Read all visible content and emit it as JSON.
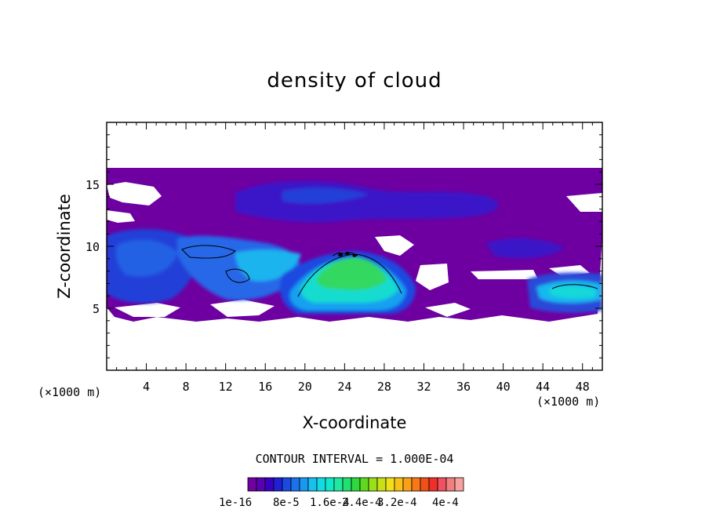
{
  "chart_data": {
    "type": "heatmap",
    "title": "density of cloud",
    "xlabel": "X-coordinate",
    "ylabel": "Z-coordinate",
    "x_unit": "(×1000 m)",
    "z_unit": "(×1000 m)",
    "xlim": [
      0,
      50
    ],
    "ylim": [
      0,
      20
    ],
    "x_ticks": [
      4,
      8,
      12,
      16,
      20,
      24,
      28,
      32,
      36,
      40,
      44,
      48
    ],
    "y_ticks": [
      5,
      10,
      15
    ],
    "contour_interval": "CONTOUR INTERVAL = 1.000E-04",
    "colorbar": {
      "labels": [
        "1e-16",
        "8e-5",
        "1.6e-4",
        "2.4e-4",
        "3.2e-4",
        "4e-4"
      ],
      "colors": [
        "#7000a0",
        "#5a00b0",
        "#3a00c0",
        "#1f1fd6",
        "#1a4ae0",
        "#1b72ea",
        "#1a98f0",
        "#18c0f0",
        "#10dce8",
        "#10e8c8",
        "#20e8a0",
        "#20e070",
        "#30d840",
        "#60d820",
        "#98e018",
        "#c8e018",
        "#f0e018",
        "#f8c018",
        "#f8a018",
        "#f87818",
        "#f05018",
        "#f03028",
        "#f05060",
        "#f08080",
        "#f8a0a0"
      ]
    },
    "regions": [
      {
        "name": "upper-anvil",
        "level": "low",
        "x": [
          0,
          50
        ],
        "z": [
          4.5,
          16
        ]
      },
      {
        "name": "main-core",
        "level": "high",
        "x": [
          21,
          29
        ],
        "z": [
          5,
          9.8
        ],
        "peak_approx": 0.00024
      },
      {
        "name": "left-cells",
        "level": "medium",
        "x": [
          6,
          19
        ],
        "z": [
          5.5,
          10.3
        ]
      },
      {
        "name": "right-cell",
        "level": "medium",
        "x": [
          43,
          50
        ],
        "z": [
          5,
          7.3
        ]
      }
    ]
  }
}
